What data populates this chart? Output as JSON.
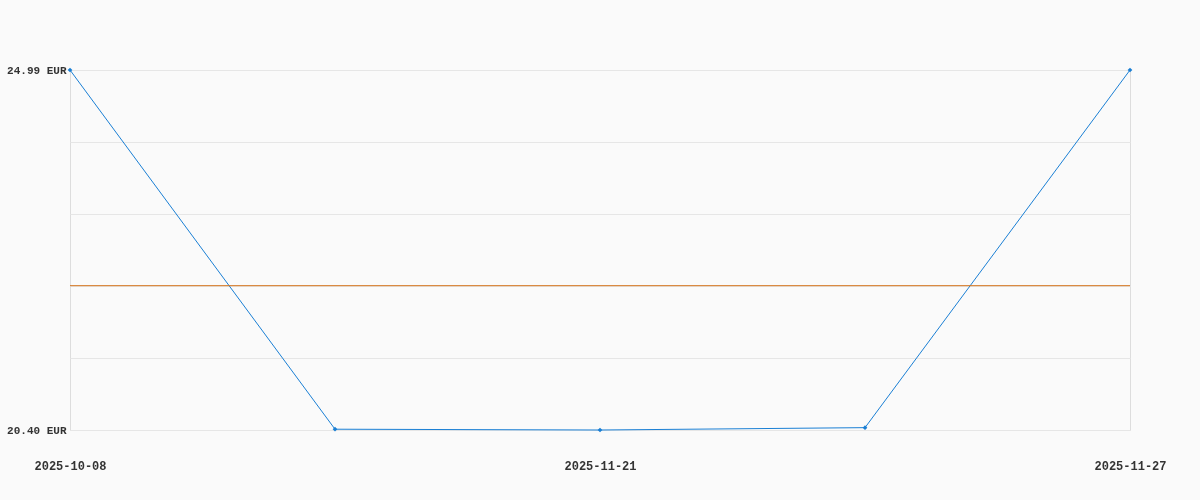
{
  "chart_data": {
    "type": "line",
    "categories": [
      "2025-10-08",
      null,
      "2025-11-21",
      null,
      "2025-11-27"
    ],
    "series": [
      {
        "color": "#1a7fd4",
        "values": [
          24.99,
          20.41,
          20.4,
          20.43,
          24.99
        ]
      }
    ],
    "ylim": [
      20.4,
      24.99
    ],
    "yticks": [
      {
        "value": 20.4,
        "label": "20.40 EUR"
      },
      {
        "value": 21.32,
        "label": null
      },
      {
        "value": 22.24,
        "label": null
      },
      {
        "value": 23.15,
        "label": null
      },
      {
        "value": 24.07,
        "label": null
      },
      {
        "value": 24.99,
        "label": "24.99 EUR"
      }
    ],
    "ref_lines": [
      {
        "axis": "y",
        "value": 22.24,
        "color": "#d4731c"
      }
    ],
    "grid": "y",
    "marker": "diamond",
    "line_style": "solid"
  }
}
